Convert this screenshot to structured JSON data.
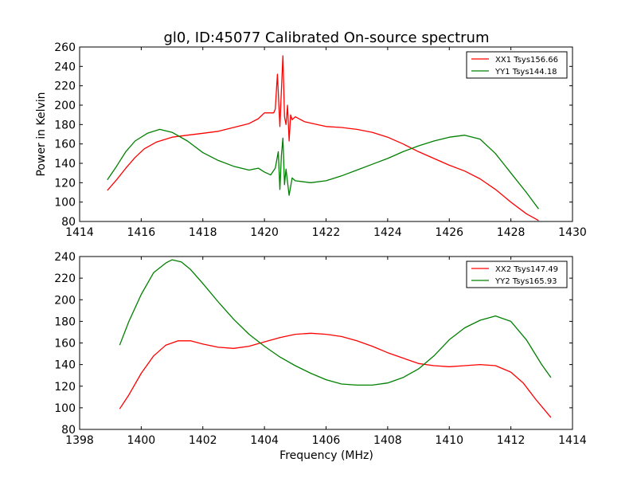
{
  "chart_data": [
    {
      "type": "line",
      "title": "gl0, ID:45077 Calibrated On-source spectrum",
      "xlabel": "",
      "ylabel": "Power in Kelvin",
      "xlim": [
        1414,
        1430
      ],
      "ylim": [
        80,
        260
      ],
      "xticks": [
        "1414",
        "1416",
        "1418",
        "1420",
        "1422",
        "1424",
        "1426",
        "1428",
        "1430"
      ],
      "yticks": [
        "80",
        "100",
        "120",
        "140",
        "160",
        "180",
        "200",
        "220",
        "240",
        "260"
      ],
      "grid": false,
      "legend_position": "top-right",
      "series": [
        {
          "name": "XX1 Tsys156.66",
          "color": "#ff0000",
          "x": [
            1414.9,
            1415.2,
            1415.5,
            1415.8,
            1416.1,
            1416.5,
            1417.0,
            1417.5,
            1418.0,
            1418.5,
            1419.0,
            1419.5,
            1419.8,
            1420.0,
            1420.2,
            1420.3,
            1420.35,
            1420.42,
            1420.5,
            1420.55,
            1420.6,
            1420.65,
            1420.7,
            1420.75,
            1420.8,
            1420.85,
            1420.9,
            1421.0,
            1421.3,
            1421.7,
            1422.0,
            1422.5,
            1423.0,
            1423.5,
            1424.0,
            1424.5,
            1425.0,
            1425.5,
            1426.0,
            1426.5,
            1427.0,
            1427.5,
            1428.0,
            1428.5,
            1428.9
          ],
          "y": [
            112,
            123,
            135,
            146,
            155,
            162,
            167,
            169,
            171,
            173,
            177,
            181,
            186,
            192,
            192,
            192,
            196,
            232,
            178,
            215,
            251,
            188,
            180,
            200,
            163,
            190,
            185,
            188,
            183,
            180,
            178,
            177,
            175,
            172,
            167,
            160,
            152,
            145,
            138,
            132,
            124,
            113,
            100,
            88,
            81
          ]
        },
        {
          "name": "YY1 Tsys144.18",
          "color": "#008000",
          "x": [
            1414.9,
            1415.2,
            1415.5,
            1415.8,
            1416.2,
            1416.6,
            1417.0,
            1417.5,
            1418.0,
            1418.5,
            1419.0,
            1419.5,
            1419.8,
            1420.0,
            1420.2,
            1420.35,
            1420.45,
            1420.5,
            1420.55,
            1420.6,
            1420.65,
            1420.7,
            1420.8,
            1420.9,
            1421.0,
            1421.5,
            1422.0,
            1422.5,
            1423.0,
            1423.5,
            1424.0,
            1424.5,
            1425.0,
            1425.5,
            1426.0,
            1426.5,
            1427.0,
            1427.5,
            1428.0,
            1428.5,
            1428.9
          ],
          "y": [
            123,
            137,
            152,
            163,
            171,
            175,
            172,
            163,
            151,
            143,
            137,
            133,
            135,
            131,
            128,
            135,
            152,
            113,
            148,
            166,
            118,
            134,
            107,
            125,
            122,
            120,
            122,
            127,
            133,
            139,
            145,
            152,
            158,
            163,
            167,
            169,
            165,
            150,
            130,
            110,
            93
          ]
        }
      ]
    },
    {
      "type": "line",
      "title": "",
      "xlabel": "Frequency (MHz)",
      "ylabel": "",
      "xlim": [
        1398,
        1414
      ],
      "ylim": [
        80,
        240
      ],
      "xticks": [
        "1398",
        "1400",
        "1402",
        "1404",
        "1406",
        "1408",
        "1410",
        "1412",
        "1414"
      ],
      "yticks": [
        "80",
        "100",
        "120",
        "140",
        "160",
        "180",
        "200",
        "220",
        "240"
      ],
      "grid": false,
      "legend_position": "top-right",
      "series": [
        {
          "name": "XX2 Tsys147.49",
          "color": "#ff0000",
          "x": [
            1399.3,
            1399.6,
            1400.0,
            1400.4,
            1400.8,
            1401.2,
            1401.6,
            1402.0,
            1402.5,
            1403.0,
            1403.5,
            1404.0,
            1404.5,
            1405.0,
            1405.5,
            1406.0,
            1406.5,
            1407.0,
            1407.5,
            1408.0,
            1408.5,
            1409.0,
            1409.5,
            1410.0,
            1410.5,
            1411.0,
            1411.5,
            1412.0,
            1412.4,
            1412.8,
            1413.3
          ],
          "y": [
            99,
            112,
            132,
            148,
            158,
            162,
            162,
            159,
            156,
            155,
            157,
            161,
            165,
            168,
            169,
            168,
            166,
            162,
            157,
            151,
            146,
            141,
            139,
            138,
            139,
            140,
            139,
            133,
            123,
            108,
            91
          ]
        },
        {
          "name": "YY2 Tsys165.93",
          "color": "#008000",
          "x": [
            1399.3,
            1399.6,
            1400.0,
            1400.4,
            1400.8,
            1401.0,
            1401.3,
            1401.6,
            1402.0,
            1402.5,
            1403.0,
            1403.5,
            1404.0,
            1404.5,
            1405.0,
            1405.5,
            1406.0,
            1406.5,
            1407.0,
            1407.5,
            1408.0,
            1408.5,
            1409.0,
            1409.5,
            1410.0,
            1410.5,
            1411.0,
            1411.5,
            1412.0,
            1412.5,
            1413.0,
            1413.3
          ],
          "y": [
            158,
            180,
            205,
            225,
            234,
            237,
            235,
            228,
            215,
            198,
            182,
            168,
            157,
            147,
            139,
            132,
            126,
            122,
            121,
            121,
            123,
            128,
            136,
            148,
            163,
            174,
            181,
            185,
            180,
            163,
            140,
            128
          ]
        }
      ]
    }
  ]
}
